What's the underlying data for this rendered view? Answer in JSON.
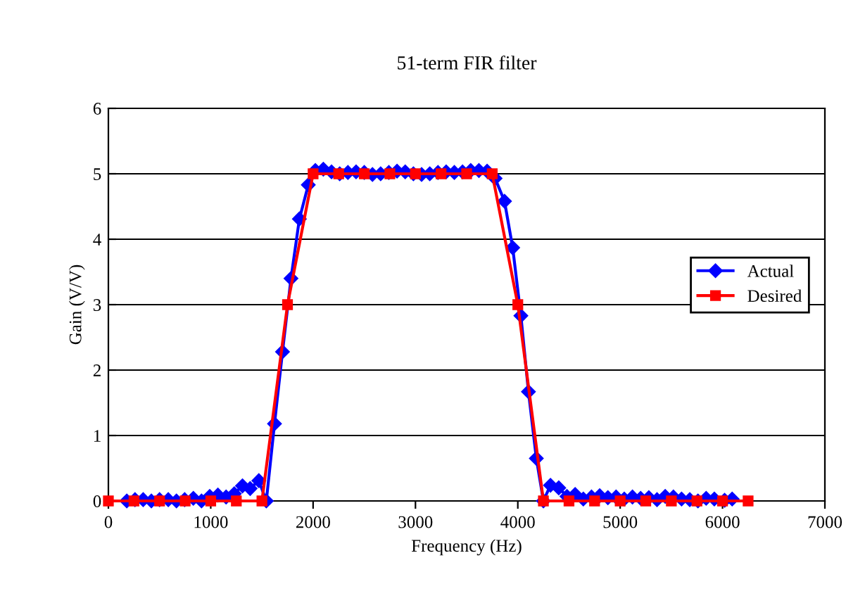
{
  "chart_data": {
    "type": "line",
    "title": "51-term FIR filter",
    "xlabel": "Frequency (Hz)",
    "ylabel": "Gain (V/V)",
    "xlim": [
      0,
      7000
    ],
    "xticks": [
      0,
      1000,
      2000,
      3000,
      4000,
      5000,
      6000,
      7000
    ],
    "ylim": [
      0,
      6
    ],
    "yticks": [
      0,
      1,
      2,
      3,
      4,
      5,
      6
    ],
    "grid": "y",
    "legend": "right",
    "series": [
      {
        "name": "Actual",
        "color": "#0000ff",
        "marker": "diamond",
        "line_style": "solid",
        "x": [
          180,
          260,
          340,
          420,
          500,
          585,
          665,
          745,
          830,
          910,
          990,
          1070,
          1150,
          1230,
          1310,
          1385,
          1470,
          1543,
          1623,
          1701,
          1784,
          1866,
          1953,
          2022,
          2100,
          2180,
          2260,
          2340,
          2420,
          2500,
          2580,
          2660,
          2740,
          2820,
          2900,
          2980,
          3060,
          3140,
          3220,
          3300,
          3380,
          3460,
          3540,
          3620,
          3700,
          3778,
          3870,
          3950,
          4030,
          4104,
          4181,
          4250,
          4319,
          4400,
          4480,
          4560,
          4640,
          4720,
          4800,
          4880,
          4960,
          5040,
          5120,
          5200,
          5280,
          5360,
          5440,
          5520,
          5600,
          5680,
          5760,
          5840,
          5920,
          6020,
          6094
        ],
        "values": [
          0,
          0.02,
          0.02,
          0,
          0.02,
          0.02,
          0,
          0.02,
          0.04,
          0,
          0.07,
          0.09,
          0.06,
          0.11,
          0.23,
          0.19,
          0.31,
          0.0,
          1.18,
          2.28,
          3.4,
          4.31,
          4.83,
          5.05,
          5.07,
          5.03,
          5.0,
          5.02,
          5.03,
          5.02,
          4.99,
          5.0,
          5.02,
          5.04,
          5.03,
          5.0,
          4.99,
          5.0,
          5.02,
          5.03,
          5.02,
          5.03,
          5.05,
          5.05,
          5.04,
          4.93,
          4.58,
          3.87,
          2.83,
          1.67,
          0.65,
          0.0,
          0.24,
          0.2,
          0.07,
          0.1,
          0.03,
          0.06,
          0.08,
          0.05,
          0.06,
          0.03,
          0.06,
          0.04,
          0.05,
          0.02,
          0.07,
          0.06,
          0.03,
          0.02,
          0.0,
          0.04,
          0.03,
          0.01,
          0.03
        ]
      },
      {
        "name": "Desired",
        "color": "#ff0000",
        "marker": "square",
        "line_style": "solid",
        "x": [
          0,
          250,
          500,
          750,
          1000,
          1250,
          1500,
          1750,
          2000,
          2250,
          2500,
          2750,
          3000,
          3250,
          3500,
          3750,
          4000,
          4250,
          4500,
          4750,
          5000,
          5250,
          5500,
          5750,
          6000,
          6250
        ],
        "values": [
          0,
          0,
          0,
          0,
          0,
          0,
          0,
          3,
          5,
          5,
          5,
          5,
          5,
          5,
          5,
          5,
          3,
          0,
          0,
          0,
          0,
          0,
          0,
          0,
          0,
          0
        ]
      }
    ]
  }
}
